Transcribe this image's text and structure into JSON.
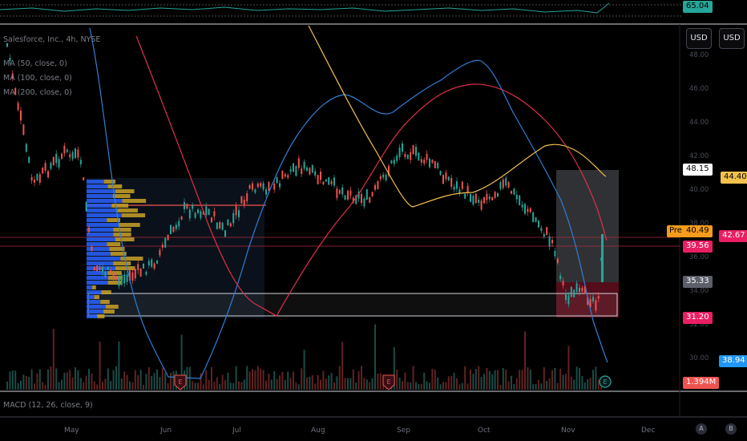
{
  "header": {
    "symbol": "Salesforce, Inc., 4h, NYSE"
  },
  "legend": [
    {
      "label": "MA (50, close, 0)"
    },
    {
      "label": "MA (100, close, 0)"
    },
    {
      "label": "MA (200, close, 0)"
    }
  ],
  "top_indicator": {
    "value": "65.04",
    "color": "#26a69a"
  },
  "bottom_indicator": {
    "label": "MACD (12, 26, close, 9)"
  },
  "currency_buttons": [
    "USD",
    "USD"
  ],
  "price_tags": {
    "top_zone": "48.15",
    "ma200": "44.40",
    "pre_label": "Pre",
    "pre_price": "40.49",
    "last_price": "42.67",
    "line_price": "39.56",
    "zone_mid": "35.33",
    "zone_low": "31.20",
    "ma50": "38.94",
    "volume": "1.394M"
  },
  "y_axis_labels": [
    "48.00",
    "46.00",
    "44.00",
    "42.00",
    "40.00",
    "38.00",
    "36.00",
    "34.00",
    "32.00",
    "30.00"
  ],
  "x_axis_labels": [
    "May",
    "Jun",
    "Jul",
    "Aug",
    "Sep",
    "Oct",
    "Nov",
    "Dec"
  ],
  "earnings_markers": [
    "E",
    "E",
    "E"
  ],
  "corner_buttons": [
    "A",
    "B"
  ],
  "colors": {
    "ma50": "#2f7fd6",
    "ma100": "#e0304a",
    "ma200": "#f2c14e",
    "up": "#26a69a",
    "down": "#ef5350",
    "vp_blue": "#2962ff",
    "vp_gold": "#c9a227"
  }
}
